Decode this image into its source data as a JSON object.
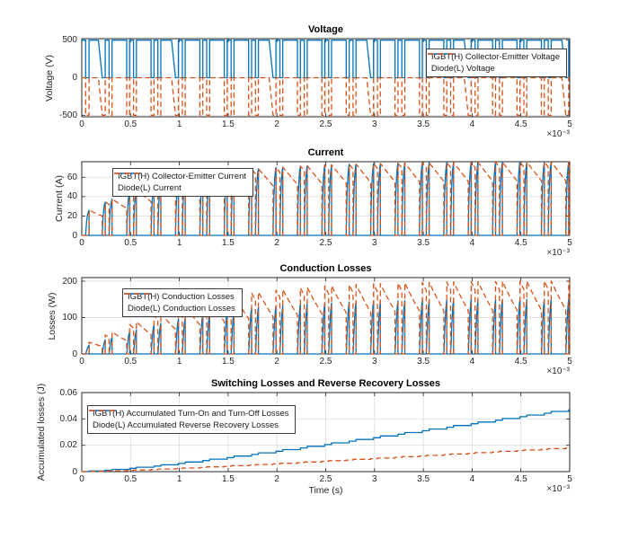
{
  "figure": {
    "background": "#ffffff",
    "palette": {
      "igbt_blue": "#0072BD",
      "diode_orange": "#D95319",
      "axis": "#262626",
      "grid": "#e0e0e0",
      "title": "#000000"
    }
  },
  "chart_data": {
    "signal_model": {
      "switching_period_s": 0.00025,
      "num_periods": 20,
      "on_intervals_frac_of_period": [
        [
          0.84,
          0.96
        ],
        [
          1.12,
          1.24
        ]
      ],
      "initial_on_interval_frac": [
        0.16,
        0.3
      ],
      "slanted_edge_every_nth_boundary": 4,
      "slant_width_frac_of_period": 0.16,
      "bus_voltage_v": 500,
      "current_envelope": {
        "peak_a": 76,
        "tau_s": 0.0009,
        "time_offset_s": 0.0003,
        "diode_decay_slope_a_per_s_at_peak": 130000,
        "igbt_rise_shape_factor": 2.5
      },
      "conduction_loss": {
        "igbt_coeff": 0.096,
        "diode_coeff": 0.128,
        "current_exponent": 1.7
      },
      "accumulated": {
        "igbt_final_j": 0.047,
        "diode_final_j": 0.018
      }
    },
    "subplots": [
      {
        "type": "line",
        "title": "Voltage",
        "ylabel": "Voltage (V)",
        "xlabel": "",
        "xlim": [
          0,
          0.005
        ],
        "ylim": [
          -520,
          520
        ],
        "yticks": [
          -500,
          0,
          500
        ],
        "ytick_labels": [
          "-500",
          "0",
          "500"
        ],
        "xticks": [
          0,
          0.0005,
          0.001,
          0.0015,
          0.002,
          0.0025,
          0.003,
          0.0035,
          0.004,
          0.0045,
          0.005
        ],
        "xtick_labels": [
          "0",
          "0.5",
          "1",
          "1.5",
          "2",
          "2.5",
          "3",
          "3.5",
          "4",
          "4.5",
          "5"
        ],
        "x_exp": "×10⁻³",
        "grid": true,
        "legend_position": "top-right",
        "series": [
          {
            "name": "IGBT(H) Collector-Emitter Voltage",
            "color": "#0072BD",
            "line": "solid",
            "gen": "igbt_vce",
            "off_level": 500,
            "on_level": 0
          },
          {
            "name": "Diode(L) Voltage",
            "color": "#D95319",
            "line": "dashed",
            "gen": "diode_v",
            "off_level": 0,
            "on_level": -500
          }
        ]
      },
      {
        "type": "line",
        "title": "Current",
        "ylabel": "Current (A)",
        "xlabel": "",
        "xlim": [
          0,
          0.005
        ],
        "ylim": [
          0,
          76
        ],
        "yticks": [
          0,
          20,
          40,
          60
        ],
        "ytick_labels": [
          "0",
          "20",
          "40",
          "60"
        ],
        "xticks": [
          0,
          0.0005,
          0.001,
          0.0015,
          0.002,
          0.0025,
          0.003,
          0.0035,
          0.004,
          0.0045,
          0.005
        ],
        "xtick_labels": [
          "0",
          "0.5",
          "1",
          "1.5",
          "2",
          "2.5",
          "3",
          "3.5",
          "4",
          "4.5",
          "5"
        ],
        "x_exp": "×10⁻³",
        "grid": true,
        "legend_position": "top-left",
        "series": [
          {
            "name": "IGBT(H) Collector-Emitter Current",
            "color": "#0072BD",
            "line": "solid",
            "gen": "igbt_i"
          },
          {
            "name": "Diode(L) Current",
            "color": "#D95319",
            "line": "dashed",
            "gen": "diode_i"
          }
        ]
      },
      {
        "type": "line",
        "title": "Conduction Losses",
        "ylabel": "Losses (W)",
        "xlabel": "",
        "xlim": [
          0,
          0.005
        ],
        "ylim": [
          0,
          210
        ],
        "yticks": [
          0,
          100,
          200
        ],
        "ytick_labels": [
          "0",
          "100",
          "200"
        ],
        "xticks": [
          0,
          0.0005,
          0.001,
          0.0015,
          0.002,
          0.0025,
          0.003,
          0.0035,
          0.004,
          0.0045,
          0.005
        ],
        "xtick_labels": [
          "0",
          "0.5",
          "1",
          "1.5",
          "2",
          "2.5",
          "3",
          "3.5",
          "4",
          "4.5",
          "5"
        ],
        "x_exp": "×10⁻³",
        "grid": true,
        "legend_position": "top-left",
        "series": [
          {
            "name": "IGBT(H) Conduction Losses",
            "color": "#0072BD",
            "line": "solid",
            "gen": "igbt_closs"
          },
          {
            "name": "Diode(L) Conduction Losses",
            "color": "#D95319",
            "line": "dashed",
            "gen": "diode_closs"
          }
        ]
      },
      {
        "type": "line",
        "title": "Switching Losses and Reverse Recovery Losses",
        "ylabel": "Accumulated losses (J)",
        "xlabel": "Time (s)",
        "xlim": [
          0,
          0.005
        ],
        "ylim": [
          0,
          0.06
        ],
        "yticks": [
          0,
          0.02,
          0.04,
          0.06
        ],
        "ytick_labels": [
          "0",
          "0.02",
          "0.04",
          "0.06"
        ],
        "xticks": [
          0,
          0.0005,
          0.001,
          0.0015,
          0.002,
          0.0025,
          0.003,
          0.0035,
          0.004,
          0.0045,
          0.005
        ],
        "xtick_labels": [
          "0",
          "0.5",
          "1",
          "1.5",
          "2",
          "2.5",
          "3",
          "3.5",
          "4",
          "4.5",
          "5"
        ],
        "x_exp": "×10⁻³",
        "grid": true,
        "legend_position": "top-left",
        "series": [
          {
            "name": "IGBT(H) Accumulated Turn-On and Turn-Off Losses",
            "color": "#0072BD",
            "line": "solid",
            "gen": "igbt_sw"
          },
          {
            "name": "Diode(L) Accumulated Reverse Recovery Losses",
            "color": "#D95319",
            "line": "dashed",
            "gen": "diode_rr"
          }
        ]
      }
    ]
  }
}
